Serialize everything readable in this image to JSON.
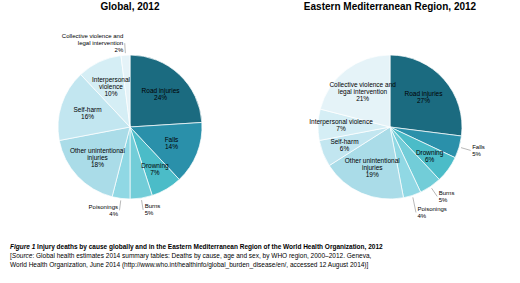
{
  "chart_data": [
    {
      "type": "pie",
      "title": "Global, 2012",
      "categories": [
        "Road injuries",
        "Falls",
        "Drowning",
        "Burns",
        "Poisonings",
        "Other unintentional\ninjuries",
        "Self-harm",
        "Interpersonal\nviolence",
        "Collective violence and\nlegal intervention"
      ],
      "values": [
        24,
        14,
        7,
        5,
        4,
        18,
        16,
        10,
        2
      ],
      "value_labels": [
        "24%",
        "14%",
        "7%",
        "5%",
        "4%",
        "18%",
        "16%",
        "10%",
        "2%"
      ],
      "colors": [
        "#1b6b80",
        "#2a90aa",
        "#4bbcc8",
        "#72cdd8",
        "#90d8e4",
        "#aadce8",
        "#c2e6f0",
        "#d5eef5",
        "#e5f3f8"
      ],
      "data_labels": true
    },
    {
      "type": "pie",
      "title": "Eastern Mediterranean Region, 2012",
      "categories": [
        "Road injuries",
        "Falls",
        "Drowning",
        "Burns",
        "Poisonings",
        "Other unintentional\ninjuries",
        "Self-harm",
        "Interpersonal violence",
        "Collective violence and\nlegal intervention"
      ],
      "values": [
        27,
        5,
        6,
        5,
        4,
        19,
        6,
        7,
        21
      ],
      "value_labels": [
        "27%",
        "5%",
        "6%",
        "5%",
        "4%",
        "19%",
        "6%",
        "7%",
        "21%"
      ],
      "colors": [
        "#1b6b80",
        "#2a90aa",
        "#4bbcc8",
        "#72cdd8",
        "#90d8e4",
        "#aadce8",
        "#c2e6f0",
        "#d5eef5",
        "#e5f3f8"
      ],
      "data_labels": true
    }
  ],
  "annotations": [
    "Figure 1",
    " Injury deaths by cause globally and in the Eastern Mediterranean Region of the World Health Organization, 2012",
    "[",
    "Source",
    ": Global health estimates 2014 summary tables: Deaths by cause, age and sex, by WHO region, 2000–2012. Geneva,\nWorld Health Organization, June 2014 (http://www.who.int/healthinfo/global_burden_disease/en/, accessed 12 August 2014)]"
  ]
}
